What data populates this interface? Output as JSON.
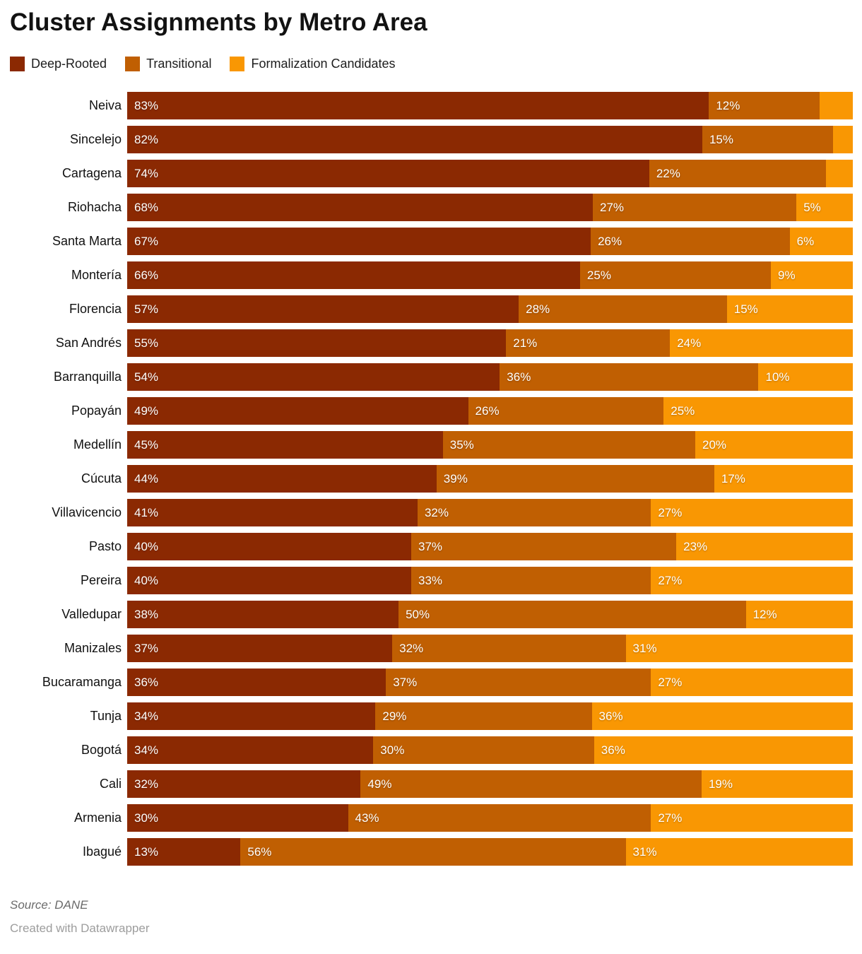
{
  "title": "Cluster Assignments by Metro Area",
  "legend": [
    {
      "label": "Deep-Rooted",
      "color": "#8B2902"
    },
    {
      "label": "Transitional",
      "color": "#C05F02"
    },
    {
      "label": "Formalization Candidates",
      "color": "#F99703"
    }
  ],
  "footer": {
    "source": "Source: DANE",
    "credit": "Created with Datawrapper"
  },
  "chart_data": {
    "type": "bar",
    "variant": "stacked-horizontal",
    "stacked": true,
    "orientation": "horizontal",
    "value_format": "percent",
    "xlim": [
      0,
      100
    ],
    "grid": false,
    "legend_position": "top",
    "title": "Cluster Assignments by Metro Area",
    "xlabel": "",
    "ylabel": "",
    "series_names": [
      "Deep-Rooted",
      "Transitional",
      "Formalization Candidates"
    ],
    "series_colors": [
      "#8B2902",
      "#C05F02",
      "#F99703"
    ],
    "categories": [
      "Neiva",
      "Sincelejo",
      "Cartagena",
      "Riohacha",
      "Santa Marta",
      "Montería",
      "Florencia",
      "San Andrés",
      "Barranquilla",
      "Popayán",
      "Medellín",
      "Cúcuta",
      "Villavicencio",
      "Pasto",
      "Pereira",
      "Valledupar",
      "Manizales",
      "Bucaramanga",
      "Tunja",
      "Bogotá",
      "Cali",
      "Armenia",
      "Ibagué"
    ],
    "rows": [
      {
        "name": "Neiva",
        "values": [
          83,
          12,
          5
        ],
        "labels": [
          "83%",
          "12%",
          ""
        ]
      },
      {
        "name": "Sincelejo",
        "values": [
          82,
          15,
          3
        ],
        "labels": [
          "82%",
          "15%",
          ""
        ]
      },
      {
        "name": "Cartagena",
        "values": [
          74,
          22,
          4
        ],
        "labels": [
          "74%",
          "22%",
          ""
        ]
      },
      {
        "name": "Riohacha",
        "values": [
          68,
          27,
          5
        ],
        "labels": [
          "68%",
          "27%",
          "5%"
        ]
      },
      {
        "name": "Santa Marta",
        "values": [
          67,
          26,
          6
        ],
        "labels": [
          "67%",
          "26%",
          "6%"
        ]
      },
      {
        "name": "Montería",
        "values": [
          66,
          25,
          9
        ],
        "labels": [
          "66%",
          "25%",
          "9%"
        ]
      },
      {
        "name": "Florencia",
        "values": [
          57,
          28,
          15
        ],
        "labels": [
          "57%",
          "28%",
          "15%"
        ]
      },
      {
        "name": "San Andrés",
        "values": [
          55,
          21,
          24
        ],
        "labels": [
          "55%",
          "21%",
          "24%"
        ]
      },
      {
        "name": "Barranquilla",
        "values": [
          54,
          36,
          10
        ],
        "labels": [
          "54%",
          "36%",
          "10%"
        ]
      },
      {
        "name": "Popayán",
        "values": [
          49,
          26,
          25
        ],
        "labels": [
          "49%",
          "26%",
          "25%"
        ]
      },
      {
        "name": "Medellín",
        "values": [
          45,
          35,
          20
        ],
        "labels": [
          "45%",
          "35%",
          "20%"
        ]
      },
      {
        "name": "Cúcuta",
        "values": [
          44,
          39,
          17
        ],
        "labels": [
          "44%",
          "39%",
          "17%"
        ]
      },
      {
        "name": "Villavicencio",
        "values": [
          41,
          32,
          27
        ],
        "labels": [
          "41%",
          "32%",
          "27%"
        ]
      },
      {
        "name": "Pasto",
        "values": [
          40,
          37,
          23
        ],
        "labels": [
          "40%",
          "37%",
          "23%"
        ]
      },
      {
        "name": "Pereira",
        "values": [
          40,
          33,
          27
        ],
        "labels": [
          "40%",
          "33%",
          "27%"
        ]
      },
      {
        "name": "Valledupar",
        "values": [
          38,
          50,
          12
        ],
        "labels": [
          "38%",
          "50%",
          "12%"
        ]
      },
      {
        "name": "Manizales",
        "values": [
          37,
          32,
          31
        ],
        "labels": [
          "37%",
          "32%",
          "31%"
        ]
      },
      {
        "name": "Bucaramanga",
        "values": [
          36,
          37,
          27
        ],
        "labels": [
          "36%",
          "37%",
          "27%"
        ]
      },
      {
        "name": "Tunja",
        "values": [
          34,
          29,
          36
        ],
        "labels": [
          "34%",
          "29%",
          "36%"
        ]
      },
      {
        "name": "Bogotá",
        "values": [
          34,
          30,
          36
        ],
        "labels": [
          "34%",
          "30%",
          "36%"
        ]
      },
      {
        "name": "Cali",
        "values": [
          32,
          49,
          19
        ],
        "labels": [
          "32%",
          "49%",
          "19%"
        ]
      },
      {
        "name": "Armenia",
        "values": [
          30,
          43,
          27
        ],
        "labels": [
          "30%",
          "43%",
          "27%"
        ]
      },
      {
        "name": "Ibagué",
        "values": [
          13,
          56,
          31
        ],
        "labels": [
          "13%",
          "56%",
          "31%"
        ]
      }
    ]
  }
}
